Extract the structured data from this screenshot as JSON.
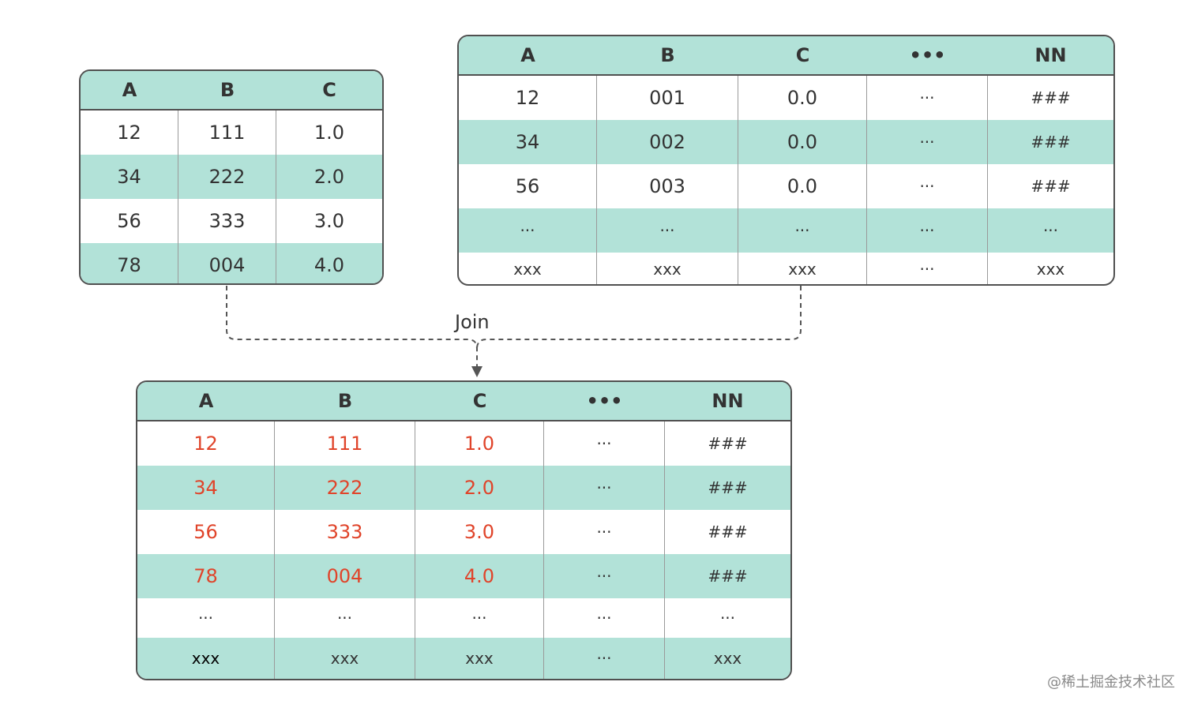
{
  "table_left": {
    "headers": [
      "A",
      "B",
      "C"
    ],
    "rows": [
      [
        "12",
        "111",
        "1.0"
      ],
      [
        "34",
        "222",
        "2.0"
      ],
      [
        "56",
        "333",
        "3.0"
      ],
      [
        "78",
        "004",
        "4.0"
      ]
    ]
  },
  "table_right": {
    "headers": [
      "A",
      "B",
      "C",
      "•••",
      "NN"
    ],
    "rows": [
      [
        "12",
        "001",
        "0.0",
        "···",
        "###"
      ],
      [
        "34",
        "002",
        "0.0",
        "···",
        "###"
      ],
      [
        "56",
        "003",
        "0.0",
        "···",
        "###"
      ],
      [
        "···",
        "···",
        "···",
        "···",
        "···"
      ],
      [
        "xxx",
        "xxx",
        "xxx",
        "···",
        "xxx"
      ]
    ]
  },
  "join_label": "Join",
  "table_result": {
    "headers": [
      "A",
      "B",
      "C",
      "•••",
      "NN"
    ],
    "rows": [
      [
        "12",
        "111",
        "1.0",
        "···",
        "###"
      ],
      [
        "34",
        "222",
        "2.0",
        "···",
        "###"
      ],
      [
        "56",
        "333",
        "3.0",
        "···",
        "###"
      ],
      [
        "78",
        "004",
        "4.0",
        "···",
        "###"
      ],
      [
        "···",
        "···",
        "···",
        "···",
        "···"
      ],
      [
        "xxx",
        "xxx",
        "xxx",
        "···",
        "xxx"
      ]
    ]
  },
  "watermark": "@稀土掘金技术社区",
  "colors": {
    "header_fill": "#b2e2d8",
    "row_shade": "#b2e2d8",
    "border": "#505050",
    "highlight_text": "#e0442a"
  }
}
